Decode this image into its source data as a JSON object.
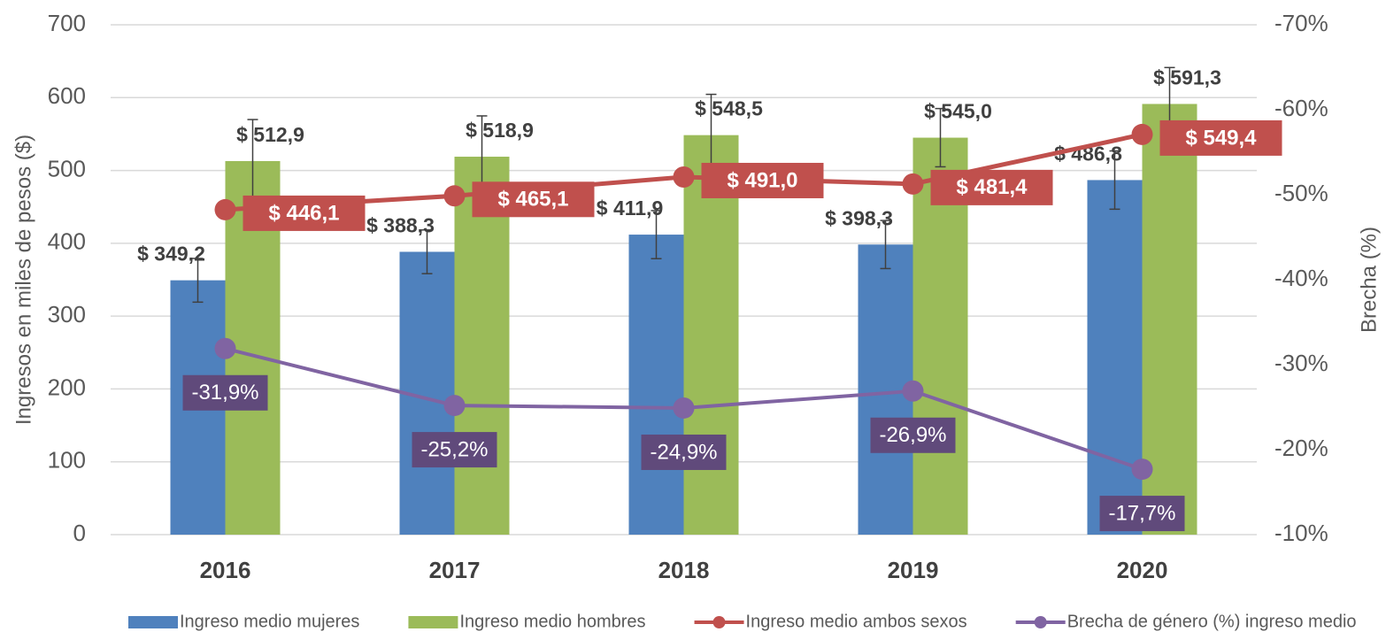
{
  "chart_data": {
    "type": "bar",
    "y_label": "Ingresos en miles de pesos ($)",
    "y2_label": "Brecha (%)",
    "categories": [
      "2016",
      "2017",
      "2018",
      "2019",
      "2020"
    ],
    "ylim": [
      0,
      700
    ],
    "yticks": [
      0,
      100,
      200,
      300,
      400,
      500,
      600,
      700
    ],
    "y2lim": [
      -10,
      -70
    ],
    "y2ticks": [
      {
        "value": -10,
        "label": "-10%"
      },
      {
        "value": -20,
        "label": "-20%"
      },
      {
        "value": -30,
        "label": "-30%"
      },
      {
        "value": -40,
        "label": "-40%"
      },
      {
        "value": -50,
        "label": "-50%"
      },
      {
        "value": -60,
        "label": "-60%"
      },
      {
        "value": -70,
        "label": "-70%"
      }
    ],
    "grid": true,
    "legend": "bottom",
    "series": [
      {
        "name": "Ingreso medio mujeres",
        "type": "bar",
        "color": "#4f81bd",
        "values": [
          349.2,
          388.3,
          411.9,
          398.3,
          486.8
        ],
        "errors": [
          30,
          30,
          33,
          33,
          40
        ],
        "value_labels": [
          "$ 349,2",
          "$ 388,3",
          "$ 411,9",
          "$ 398,3",
          "$ 486,8"
        ]
      },
      {
        "name": "Ingreso medio hombres",
        "type": "bar",
        "color": "#9bbb59",
        "values": [
          512.9,
          518.9,
          548.5,
          545.0,
          591.3
        ],
        "errors": [
          57,
          56,
          56,
          40,
          50
        ],
        "value_labels": [
          "$ 512,9",
          "$ 518,9",
          "$ 548,5",
          "$ 545,0",
          "$ 591,3"
        ]
      },
      {
        "name": "Ingreso medio ambos sexos",
        "type": "line",
        "color": "#c0504d",
        "values": [
          446.1,
          465.1,
          491.0,
          481.4,
          549.4
        ],
        "value_labels": [
          "$ 446,1",
          "$ 465,1",
          "$ 491,0",
          "$ 481,4",
          "$ 549,4"
        ]
      },
      {
        "name": "Brecha de género (%) ingreso medio",
        "type": "line",
        "axis": "y2",
        "color": "#8064a2",
        "values": [
          -31.9,
          -25.2,
          -24.9,
          -26.9,
          -17.7
        ],
        "value_labels": [
          "-31,9%",
          "-25,2%",
          "-24,9%",
          "-26,9%",
          "-17,7%"
        ]
      }
    ]
  }
}
